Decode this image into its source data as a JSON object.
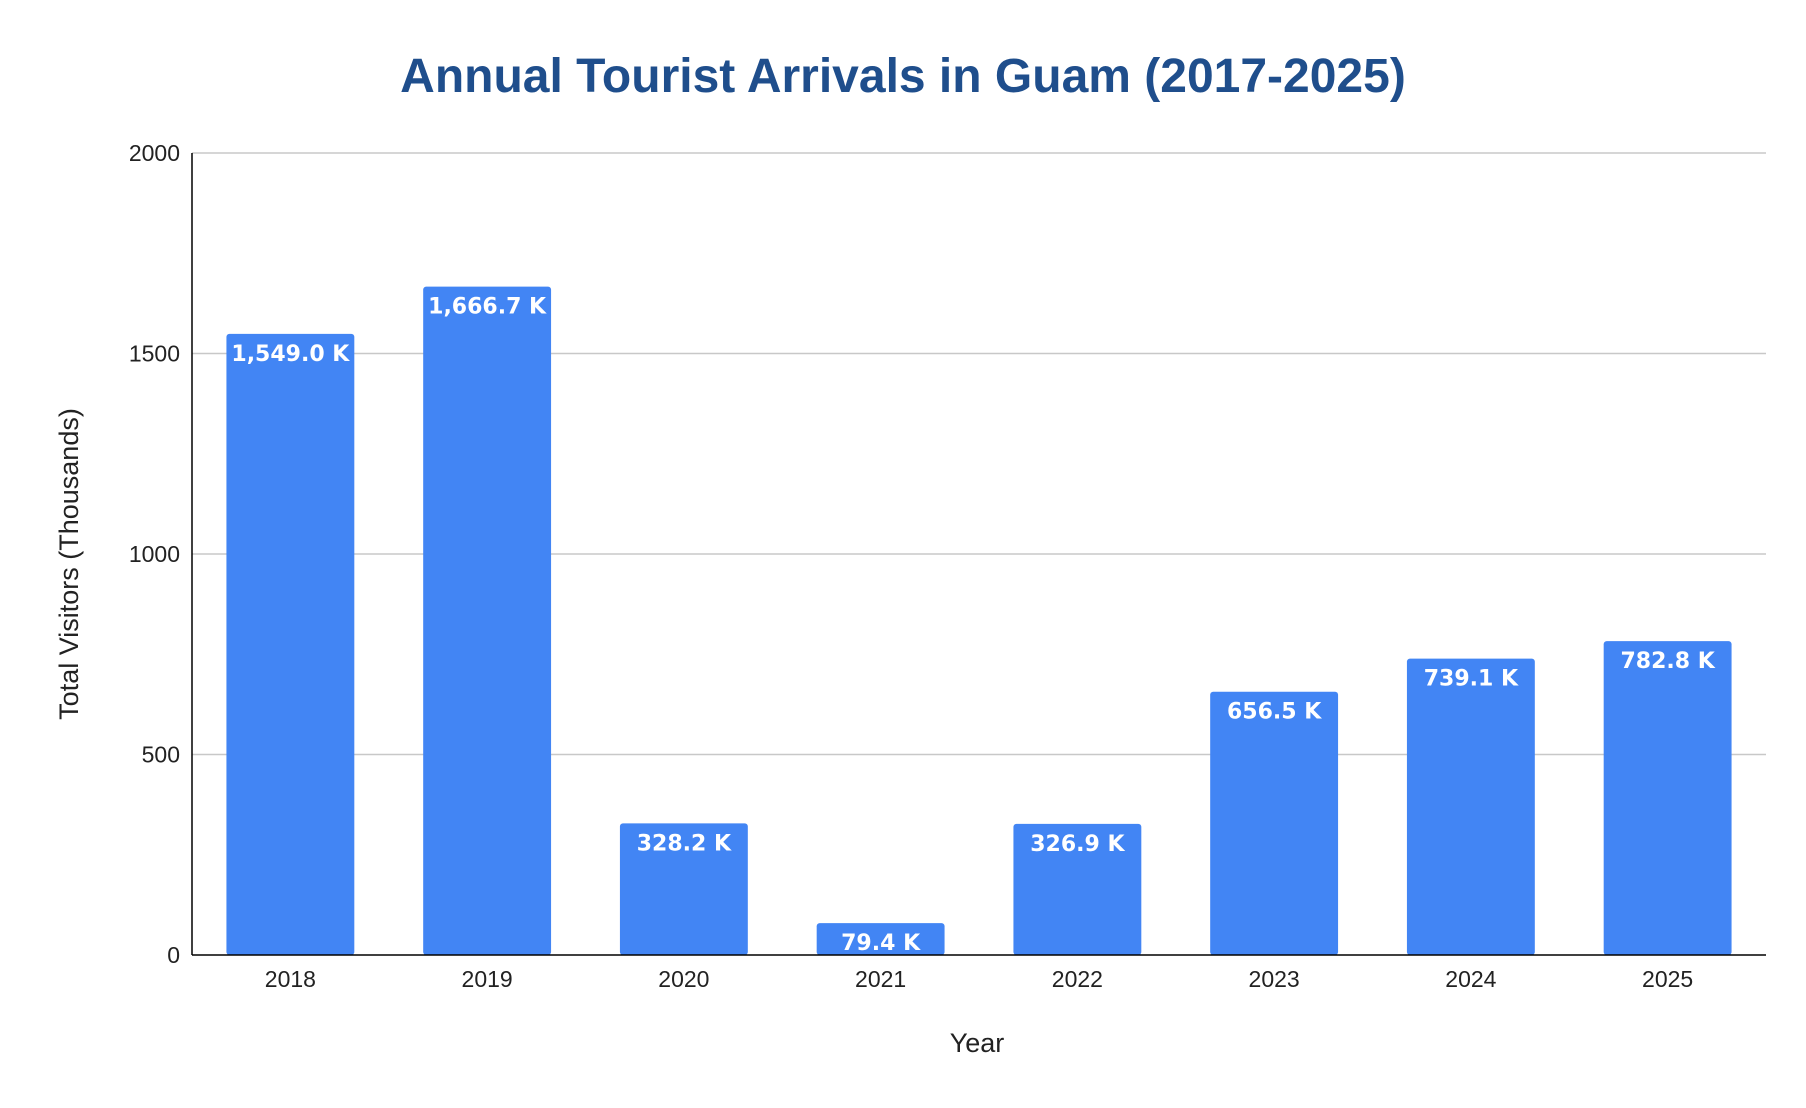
{
  "chart_data": {
    "type": "bar",
    "title": "Annual Tourist Arrivals in Guam (2017-2025)",
    "xlabel": "Year",
    "ylabel": "Total Visitors (Thousands)",
    "categories": [
      "2018",
      "2019",
      "2020",
      "2021",
      "2022",
      "2023",
      "2024",
      "2025"
    ],
    "values": [
      1549.0,
      1666.7,
      328.2,
      79.4,
      326.9,
      656.5,
      739.1,
      782.8
    ],
    "data_labels": [
      "1,549.0 K",
      "1,666.7 K",
      "328.2 K",
      "79.4 K",
      "326.9 K",
      "656.5 K",
      "739.1 K",
      "782.8 K"
    ],
    "ylim": [
      0,
      2000
    ],
    "yticks": [
      "0",
      "500",
      "1000",
      "1500",
      "2000"
    ],
    "grid": true,
    "legend": "none"
  },
  "colors": {
    "bar": "#4285f4",
    "title": "#1f4e8c",
    "grid": "#c8c8c8",
    "axis": "#000000",
    "data_label": "#ffffff"
  }
}
